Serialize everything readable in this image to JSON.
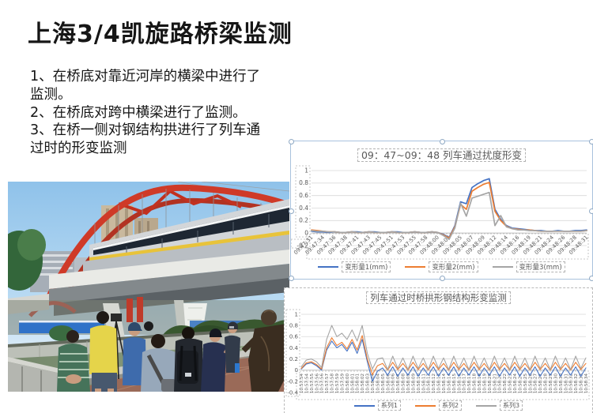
{
  "slide": {
    "title": "上海3/4凯旋路桥梁监测",
    "bullets": [
      "1、在桥底对靠近河岸的横梁中进行了监测。",
      "2、在桥底对跨中横梁进行了监测。",
      "3、在桥一侧对钢结构拱进行了列车通过时的形变监测"
    ]
  },
  "photo": {
    "palette": {
      "arch_red": "#cf3a28",
      "sky_blue": "#a9d0ef",
      "water_green": "#7e9170",
      "pavement_brown": "#9a6a58",
      "statue_bronze": "#3a2d20"
    }
  },
  "chart_data": [
    {
      "type": "line",
      "title": "09：47~09：48 列车通过扰度形变",
      "ylim": [
        -0.2,
        1
      ],
      "yticks": [
        1,
        0.8,
        0.6,
        0.4,
        0.2,
        0,
        -0.2
      ],
      "grid": true,
      "legend_position": "bottom",
      "label_every": 2,
      "x_labels": [
        "09:47:31",
        "09:47:34",
        "09:47:36",
        "09:47:38",
        "09:47:41",
        "09:47:43",
        "09:47:45",
        "09:47:51",
        "09:47:53",
        "09:47:55",
        "09:47:58",
        "09:48:00",
        "09:48:03",
        "09:48:05",
        "09:48:07",
        "09:48:09",
        "09:48:12",
        "09:48:14",
        "09:48:16",
        "09:48:19",
        "09:48:21",
        "09:48:24",
        "09:48:26",
        "09:48:28",
        "09:48:31"
      ],
      "series": [
        {
          "name": "变形量1(mm)",
          "color": "#4472C4",
          "values": [
            0.03,
            0.02,
            0.02,
            0.01,
            0.02,
            0.01,
            0.01,
            0.02,
            0.02,
            0.01,
            0.02,
            0.02,
            0.01,
            0.01,
            0.02,
            0.02,
            0.01,
            0.01,
            0.02,
            0.01,
            0.01,
            0.02,
            0.01,
            -0.02,
            -0.07,
            0.12,
            0.5,
            0.47,
            0.73,
            0.79,
            0.84,
            0.87,
            0.38,
            0.22,
            0.12,
            0.08,
            0.07,
            0.06,
            0.05,
            0.04,
            0.04,
            0.03,
            0.03,
            0.04,
            0.03,
            0.03,
            0.04,
            0.04,
            0.05
          ]
        },
        {
          "name": "变形量2(mm)",
          "color": "#ED7D31",
          "values": [
            0.05,
            0.04,
            0.03,
            0.02,
            0.02,
            0.01,
            0.01,
            0.02,
            0.01,
            0.01,
            0.02,
            0.01,
            0.01,
            0.01,
            0.02,
            0.01,
            0.01,
            0.01,
            0.02,
            0.01,
            0.01,
            0.02,
            0.01,
            -0.03,
            -0.08,
            0.1,
            0.46,
            0.38,
            0.67,
            0.73,
            0.78,
            0.81,
            0.35,
            0.2,
            0.11,
            0.07,
            0.06,
            0.05,
            0.05,
            0.04,
            0.03,
            0.03,
            0.03,
            0.03,
            0.03,
            0.03,
            0.03,
            0.03,
            0.04
          ]
        },
        {
          "name": "变形量3(mm)",
          "color": "#A5A5A5",
          "values": [
            0.04,
            0.03,
            0.03,
            0.02,
            0.02,
            0.01,
            0.01,
            0.02,
            0.01,
            0.01,
            0.02,
            0.01,
            0.01,
            0.01,
            0.02,
            0.01,
            0.01,
            0.01,
            0.02,
            0.01,
            0.01,
            0.02,
            0.01,
            -0.04,
            -0.1,
            0.08,
            0.48,
            0.27,
            0.56,
            0.59,
            0.62,
            0.65,
            0.12,
            0.28,
            0.1,
            0.07,
            0.05,
            0.05,
            0.04,
            0.04,
            0.03,
            0.03,
            0.03,
            0.03,
            0.03,
            0.03,
            0.03,
            0.03,
            0.04
          ]
        }
      ]
    },
    {
      "type": "line",
      "title": "列车通过时桥拱形钢结构形变监测",
      "ylim": [
        -0.4,
        1
      ],
      "yticks": [
        1,
        0.8,
        0.6,
        0.4,
        0.2,
        0,
        -0.2,
        -0.4
      ],
      "grid": true,
      "legend_position": "bottom",
      "label_every": 1,
      "x_labels": [
        "10:57:54",
        "10:57:54",
        "10:57:55",
        "10:57:56",
        "10:57:56",
        "10:57:57",
        "10:57:58",
        "10:57:59",
        "10:57:59",
        "10:58:00",
        "10:58:01",
        "10:58:01",
        "10:58:02",
        "10:58:03",
        "10:58:04",
        "10:58:04",
        "10:58:05",
        "10:58:06",
        "10:58:06",
        "10:58:07",
        "10:58:08",
        "10:58:09",
        "10:58:09",
        "10:58:10",
        "10:58:11",
        "10:58:12",
        "10:58:12",
        "10:58:13",
        "10:58:14",
        "10:58:14",
        "10:58:15",
        "10:58:16",
        "10:58:17",
        "10:58:17",
        "10:58:18",
        "10:58:19",
        "10:58:19",
        "10:58:20",
        "10:58:21",
        "10:58:22",
        "10:58:22",
        "10:58:23",
        "10:58:24",
        "10:58:24",
        "10:58:25",
        "10:58:26",
        "10:58:27",
        "10:58:27",
        "10:58:28",
        "10:58:29",
        "10:58:30",
        "10:58:30",
        "10:58:31",
        "10:58:32",
        "10:58:32",
        "10:58:33",
        "10:58:34"
      ],
      "series": [
        {
          "name": "系列1",
          "color": "#4472C4",
          "values": [
            0.02,
            0.11,
            0.13,
            0.08,
            0.0,
            0.36,
            0.52,
            0.4,
            0.46,
            0.34,
            0.5,
            0.3,
            0.55,
            0.15,
            -0.2,
            -0.02,
            0.04,
            -0.09,
            0.06,
            -0.11,
            0.04,
            -0.09,
            0.06,
            -0.11,
            0.04,
            -0.09,
            0.06,
            -0.11,
            0.04,
            -0.09,
            0.06,
            -0.11,
            0.04,
            -0.09,
            0.06,
            -0.11,
            0.04,
            -0.09,
            0.06,
            -0.11,
            0.04,
            -0.09,
            0.06,
            -0.11,
            0.04,
            -0.09,
            0.06,
            -0.11,
            0.04,
            -0.09,
            0.06,
            -0.11,
            0.04,
            -0.09,
            0.06,
            -0.11,
            0.04
          ]
        },
        {
          "name": "系列2",
          "color": "#ED7D31",
          "values": [
            0.03,
            0.13,
            0.15,
            0.1,
            0.02,
            0.4,
            0.58,
            0.44,
            0.5,
            0.38,
            0.55,
            0.36,
            0.62,
            0.2,
            -0.08,
            0.08,
            0.12,
            0.0,
            0.14,
            0.01,
            0.12,
            0.0,
            0.14,
            0.01,
            0.12,
            0.0,
            0.14,
            0.01,
            0.12,
            0.0,
            0.14,
            0.01,
            0.12,
            0.0,
            0.14,
            0.01,
            0.12,
            0.0,
            0.14,
            0.01,
            0.12,
            0.0,
            0.14,
            0.01,
            0.12,
            0.0,
            0.14,
            0.01,
            0.12,
            0.0,
            0.14,
            0.01,
            0.12,
            0.0,
            0.14,
            0.01,
            0.12
          ]
        },
        {
          "name": "系列3",
          "color": "#A5A5A5",
          "values": [
            0.06,
            0.18,
            0.2,
            0.15,
            0.05,
            0.55,
            0.8,
            0.6,
            0.66,
            0.55,
            0.72,
            0.52,
            0.8,
            0.3,
            0.02,
            0.2,
            0.22,
            0.01,
            0.25,
            0.03,
            0.22,
            0.01,
            0.25,
            0.03,
            0.22,
            0.01,
            0.25,
            0.03,
            0.22,
            0.01,
            0.25,
            0.03,
            0.22,
            0.01,
            0.25,
            0.03,
            0.22,
            0.01,
            0.25,
            0.03,
            0.22,
            0.01,
            0.25,
            0.03,
            0.22,
            0.01,
            0.25,
            0.03,
            0.22,
            0.01,
            0.25,
            0.03,
            0.22,
            0.01,
            0.25,
            0.03,
            0.22
          ]
        }
      ]
    }
  ]
}
